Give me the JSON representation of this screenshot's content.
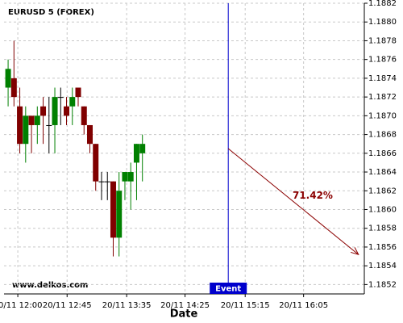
{
  "chart_data": {
    "type": "candlestick",
    "title": "EURUSD 5 (FOREX)",
    "xlabel": "Date",
    "watermark": "www.delkos.com",
    "x": [
      0,
      1,
      2,
      3,
      4,
      5,
      6,
      7,
      8,
      9,
      10,
      11,
      12,
      13,
      14,
      15,
      16,
      17,
      18,
      19,
      20,
      21,
      22,
      23
    ],
    "series": [
      {
        "open": [
          1.1873,
          1.1874,
          1.1871,
          1.1867,
          1.187,
          1.1869,
          1.1871,
          1.1869,
          1.1869,
          1.1872,
          1.1871,
          1.1871,
          1.1873,
          1.1871,
          1.1869,
          1.1867,
          1.1863,
          1.1863,
          1.1863,
          1.1857,
          1.1863,
          1.1863,
          1.1865,
          1.1866
        ],
        "high": [
          1.1876,
          1.1878,
          1.1873,
          1.1871,
          1.187,
          1.1871,
          1.1872,
          1.1872,
          1.1873,
          1.1873,
          1.1872,
          1.1873,
          1.1873,
          1.1871,
          1.1869,
          1.1867,
          1.1864,
          1.1864,
          1.1863,
          1.1864,
          1.1864,
          1.1865,
          1.1867,
          1.1868
        ],
        "low": [
          1.1871,
          1.1871,
          1.1866,
          1.1865,
          1.1866,
          1.1867,
          1.1867,
          1.1866,
          1.1866,
          1.1869,
          1.1869,
          1.1869,
          1.1871,
          1.1868,
          1.1866,
          1.1862,
          1.1861,
          1.1861,
          1.1855,
          1.1855,
          1.1861,
          1.186,
          1.1861,
          1.1863
        ],
        "close": [
          1.1875,
          1.1872,
          1.1867,
          1.187,
          1.1869,
          1.187,
          1.187,
          1.1869,
          1.1872,
          1.1872,
          1.187,
          1.1872,
          1.1872,
          1.1869,
          1.1867,
          1.1863,
          1.1863,
          1.1863,
          1.1857,
          1.1862,
          1.1864,
          1.1864,
          1.1867,
          1.1867
        ]
      }
    ],
    "up_color": "#008000",
    "down_color": "#800000",
    "xlim": [
      -0.7,
      61
    ],
    "ylim": [
      1.1851,
      1.1882
    ],
    "xticks": [
      {
        "value": 1.66,
        "label": "20/11 12:00"
      },
      {
        "value": 10.1,
        "label": "20/11 12:45"
      },
      {
        "value": 20.3,
        "label": "20/11 13:35"
      },
      {
        "value": 30.3,
        "label": "20/11 14:25"
      },
      {
        "value": 40.6,
        "label": "20/11 15:15"
      },
      {
        "value": 50.6,
        "label": "20/11 16:05"
      }
    ],
    "yticks": [
      1.1852,
      1.1854,
      1.1856,
      1.1858,
      {
        "value": 1.186,
        "label": "1.1860"
      },
      1.1862,
      1.1864,
      1.1866,
      1.1868,
      {
        "value": 1.187,
        "label": "1.1870"
      },
      1.1872,
      1.1874,
      1.1876,
      1.1878,
      {
        "value": 1.188,
        "label": "1.1880"
      },
      1.1882
    ],
    "grid": true,
    "event": {
      "label": "Event",
      "x": 37.7,
      "color": "#0000cc"
    },
    "forecast": {
      "label": "71.42%",
      "x": [
        37.7,
        60
      ],
      "values": [
        1.18665,
        1.18552
      ],
      "color": "#8b0000"
    }
  }
}
